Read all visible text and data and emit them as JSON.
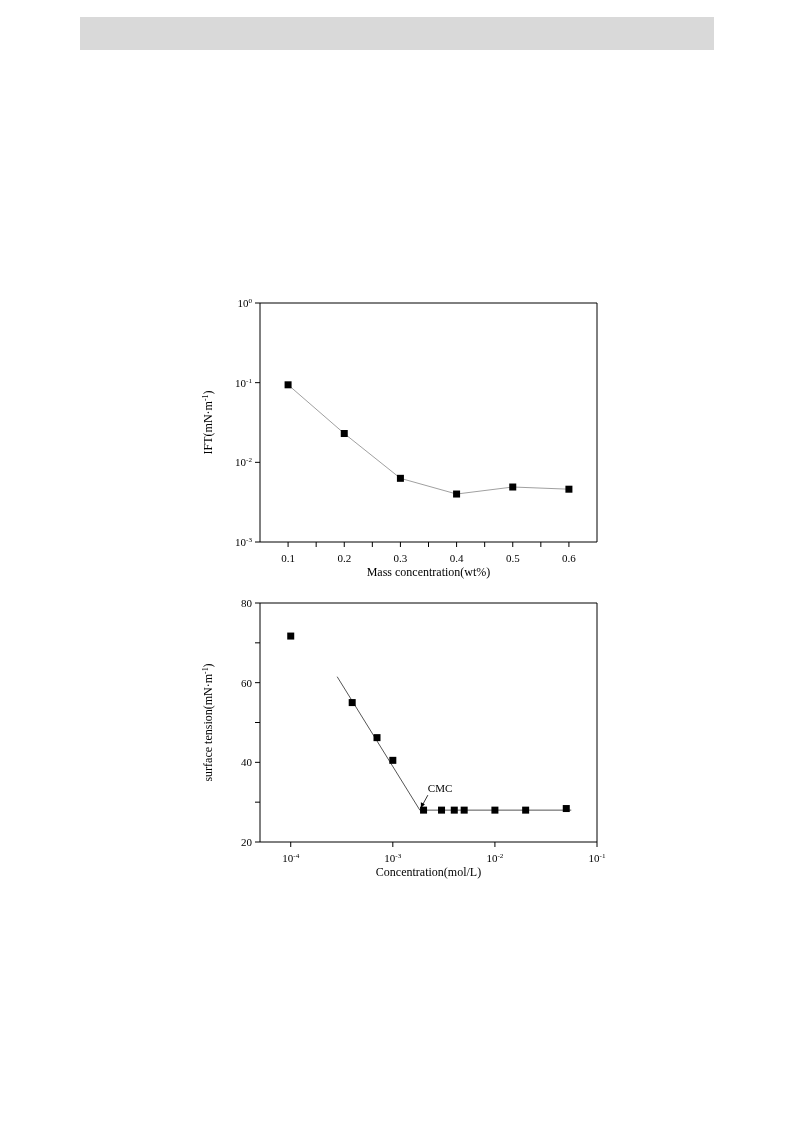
{
  "chart_data": [
    {
      "type": "line",
      "xlabel": "Mass concentration(wt%)",
      "ylabel": "IFT(mN·m$^{-1}$)",
      "log": "y",
      "xlim": [
        0.05,
        0.65
      ],
      "xticks": [
        0.1,
        {
          "value": 0.15,
          "label": null
        },
        0.2,
        {
          "value": 0.25,
          "label": null
        },
        0.3,
        {
          "value": 0.35,
          "label": null
        },
        0.4,
        {
          "value": 0.45,
          "label": null
        },
        0.5,
        {
          "value": 0.55,
          "label": null
        },
        0.6
      ],
      "ylim": [
        0.001,
        1
      ],
      "yticks": [
        {
          "value": 0.001,
          "label": "10$^{-3}$"
        },
        {
          "value": 0.01,
          "label": "10$^{-2}$"
        },
        {
          "value": 0.1,
          "label": "10$^{-1}$"
        },
        {
          "value": 1,
          "label": "10$^{0}$"
        }
      ],
      "series": [
        {
          "color": "#a0a0a0",
          "marker": "none",
          "line_style": "solid",
          "x": [
            0.1,
            0.2,
            0.3,
            0.4,
            0.5,
            0.6
          ],
          "values": [
            0.094,
            0.023,
            0.0063,
            0.004,
            0.0049,
            0.0046
          ]
        },
        {
          "type": "scatter",
          "color": "#000000",
          "marker": "square",
          "x": [
            0.1,
            0.2,
            0.3,
            0.4,
            0.5,
            0.6
          ],
          "values": [
            0.094,
            0.023,
            0.0063,
            0.004,
            0.0049,
            0.0046
          ]
        }
      ]
    },
    {
      "type": "scatter",
      "xlabel": "Concentration(mol/L)",
      "ylabel": "surface tension(mN·m$^{-1}$)",
      "log": "x",
      "xlim": [
        5e-05,
        0.1
      ],
      "xticks": [
        {
          "value": 0.0001,
          "label": "10$^{-4}$"
        },
        {
          "value": 0.001,
          "label": "10$^{-3}$"
        },
        {
          "value": 0.01,
          "label": "10$^{-2}$"
        },
        {
          "value": 0.1,
          "label": "10$^{-1}$"
        }
      ],
      "ylim": [
        20,
        80
      ],
      "yticks": [
        20,
        {
          "value": 30,
          "label": null
        },
        40,
        {
          "value": 50,
          "label": null
        },
        60,
        {
          "value": 70,
          "label": null
        },
        80
      ],
      "annotations": [
        {
          "text": "CMC",
          "x": 0.00184,
          "y": 28
        }
      ],
      "series": [
        {
          "color": "#000000",
          "marker": "square",
          "x": [
            0.0001,
            0.0004,
            0.0007,
            0.001,
            0.002,
            0.003,
            0.004,
            0.005,
            0.01,
            0.02,
            0.05
          ],
          "values": [
            71.7,
            55.0,
            46.2,
            40.5,
            28.0,
            28.0,
            28.0,
            28.0,
            28.0,
            28.0,
            28.4
          ]
        },
        {
          "type": "line",
          "color": "#555555",
          "marker": "none",
          "line_style": "solid",
          "x": [
            0.000285,
            0.00184,
            0.056
          ],
          "values": [
            61.5,
            28.0,
            28.0
          ]
        }
      ]
    }
  ]
}
